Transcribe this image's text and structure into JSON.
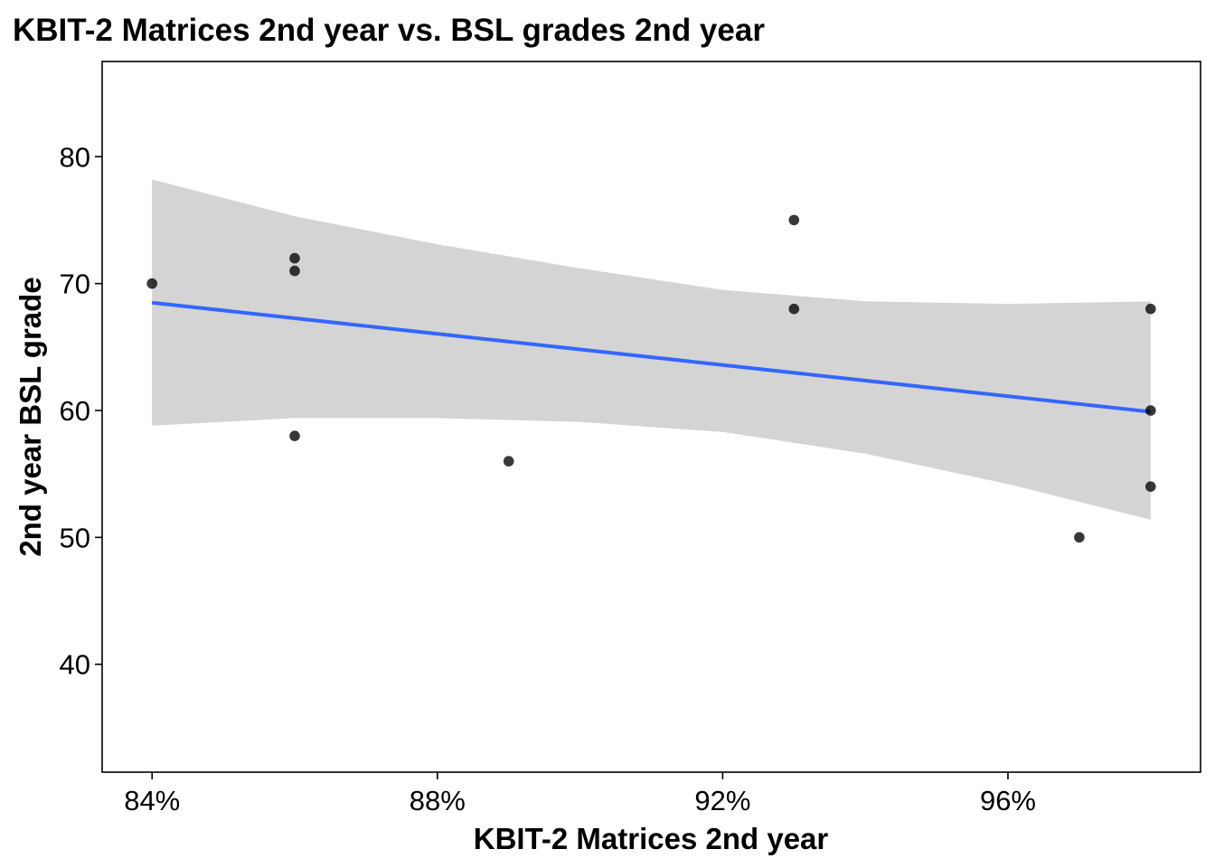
{
  "chart_data": {
    "type": "scatter",
    "title": "KBIT-2 Matrices 2nd year vs. BSL grades 2nd year",
    "xlabel": "KBIT-2 Matrices 2nd year",
    "ylabel": "2nd year BSL grade",
    "xlim": [
      0.833,
      0.987
    ],
    "ylim": [
      31.5,
      87.5
    ],
    "x_ticks": [
      0.84,
      0.88,
      0.92,
      0.96
    ],
    "x_tick_labels": [
      "84%",
      "88%",
      "92%",
      "96%"
    ],
    "y_ticks": [
      40,
      50,
      60,
      70,
      80
    ],
    "y_tick_labels": [
      "40",
      "50",
      "60",
      "70",
      "80"
    ],
    "grid": false,
    "legend": "none",
    "points": [
      {
        "x": 0.84,
        "y": 70
      },
      {
        "x": 0.86,
        "y": 72
      },
      {
        "x": 0.86,
        "y": 71
      },
      {
        "x": 0.86,
        "y": 58
      },
      {
        "x": 0.89,
        "y": 56
      },
      {
        "x": 0.93,
        "y": 75
      },
      {
        "x": 0.93,
        "y": 68
      },
      {
        "x": 0.97,
        "y": 50
      },
      {
        "x": 0.98,
        "y": 68
      },
      {
        "x": 0.98,
        "y": 60
      },
      {
        "x": 0.98,
        "y": 54
      }
    ],
    "trend_line": {
      "method": "linear",
      "x": [
        0.84,
        0.98
      ],
      "y": [
        68.5,
        59.9
      ],
      "color": "#3366FF"
    },
    "confidence_band": {
      "color": "#D4D4D4",
      "x": [
        0.84,
        0.86,
        0.88,
        0.9,
        0.92,
        0.94,
        0.96,
        0.98
      ],
      "upper": [
        78.2,
        75.3,
        73.1,
        71.2,
        69.5,
        68.6,
        68.4,
        68.6
      ],
      "lower": [
        58.8,
        59.4,
        59.4,
        59.1,
        58.3,
        56.6,
        54.2,
        51.4
      ]
    },
    "point_color": "#000000"
  }
}
